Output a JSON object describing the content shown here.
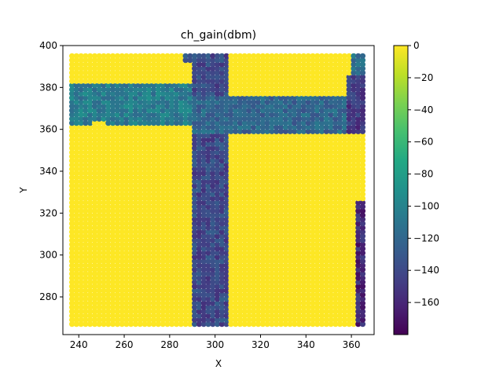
{
  "chart_data": {
    "type": "scatter",
    "title": "ch_gain(dbm)",
    "xlabel": "X",
    "ylabel": "Y",
    "xlim": [
      233,
      370
    ],
    "ylim": [
      262,
      400
    ],
    "xticks": [
      240,
      260,
      280,
      300,
      320,
      340,
      360
    ],
    "xtick_labels": [
      "240",
      "260",
      "280",
      "300",
      "320",
      "340",
      "360"
    ],
    "yticks": [
      280,
      300,
      320,
      340,
      360,
      380,
      400
    ],
    "ytick_labels": [
      "280",
      "300",
      "320",
      "340",
      "360",
      "380",
      "400"
    ],
    "colorbar": {
      "colormap": "viridis",
      "range": [
        -180,
        0
      ],
      "ticks": [
        0,
        -20,
        -40,
        -60,
        -80,
        -100,
        -120,
        -140,
        -160
      ],
      "tick_labels": [
        "0",
        "−20",
        "−40",
        "−60",
        "−80",
        "−100",
        "−120",
        "−140",
        "−160"
      ]
    },
    "grid": {
      "x_range": [
        237,
        365
      ],
      "y_range": [
        267,
        395
      ],
      "step": 2
    },
    "background_value": 0,
    "regions": [
      {
        "x": [
          290,
          306
        ],
        "y": [
          267,
          395
        ],
        "value": -140
      },
      {
        "x": [
          237,
          290
        ],
        "y": [
          362,
          382
        ],
        "value": -105
      },
      {
        "x": [
          290,
          365
        ],
        "y": [
          358,
          375
        ],
        "value": -120
      },
      {
        "x": [
          286,
          293
        ],
        "y": [
          392,
          395
        ],
        "value": -130
      },
      {
        "x": [
          247,
          252
        ],
        "y": [
          268,
          364
        ],
        "value": 0
      },
      {
        "x": [
          358,
          365
        ],
        "y": [
          358,
          386
        ],
        "value": -150
      },
      {
        "x": [
          361,
          365
        ],
        "y": [
          386,
          395
        ],
        "value": -110
      },
      {
        "x": [
          362,
          365
        ],
        "y": [
          267,
          325
        ],
        "value": -160
      }
    ]
  }
}
